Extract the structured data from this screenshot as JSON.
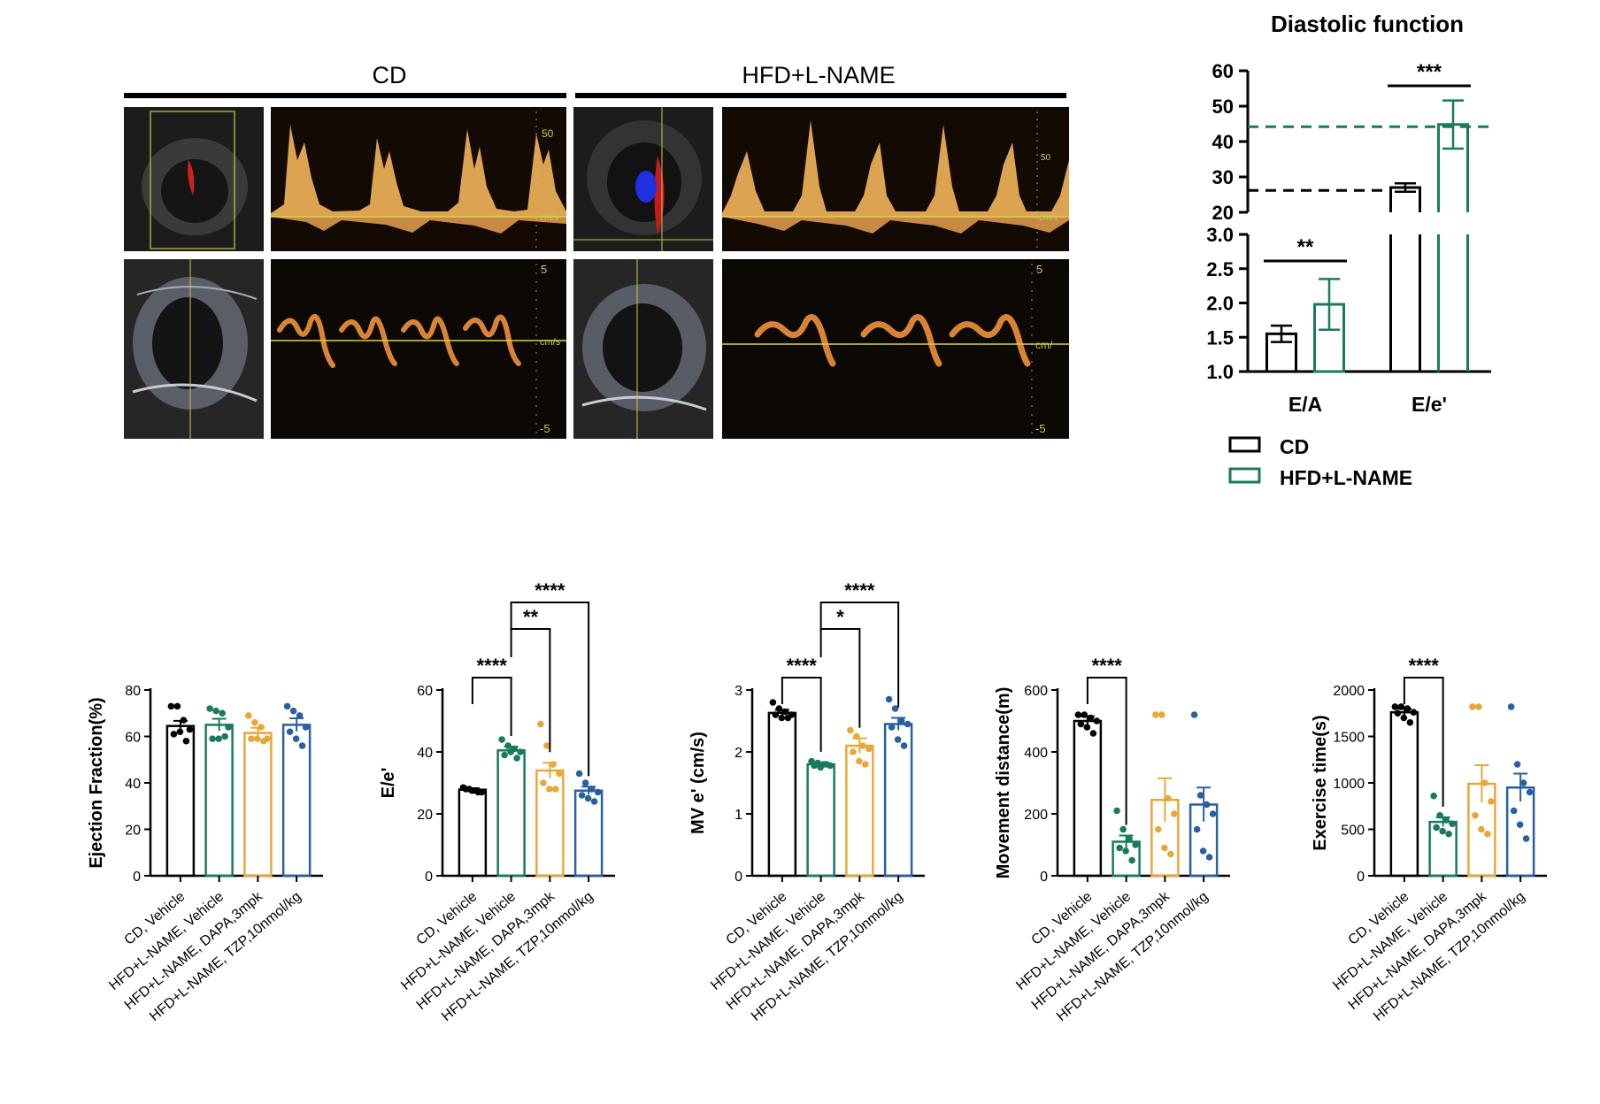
{
  "echo_panel": {
    "group_left_label": "CD",
    "group_right_label": "HFD+L-NAME",
    "scale_top": {
      "max": "50",
      "unit": "cm/s"
    },
    "scale_bottom": {
      "max": "5",
      "unit": "cm/s",
      "min": "-5"
    },
    "scale_bottom_right_unit": "cm/"
  },
  "colors": {
    "cd": "#000000",
    "hfd": "#1a7a5e",
    "dapa": "#e8a838",
    "tzp": "#2a5fa0",
    "doppler_wave": "#f2b45a",
    "tissue_wave": "#f0923a",
    "baseline": "#d8d24a"
  },
  "chart_data": [
    {
      "type": "bar",
      "title": "Diastolic function",
      "categories": [
        "E/A",
        "E/e'"
      ],
      "series": [
        {
          "name": "CD",
          "values": [
            1.55,
            27.0
          ],
          "errors": [
            0.12,
            1.2
          ]
        },
        {
          "name": "HFD+L-NAME",
          "values": [
            1.98,
            44.8
          ],
          "errors": [
            0.37,
            6.8
          ]
        }
      ],
      "axis_broken": true,
      "y_ticks_lower": [
        "1.0",
        "1.5",
        "2.0",
        "2.5",
        "3.0"
      ],
      "y_ticks_upper": [
        "20",
        "30",
        "40",
        "50",
        "60"
      ],
      "ylim_lower": [
        1.0,
        3.0
      ],
      "ylim_upper": [
        20,
        60
      ],
      "reference_lines": [
        {
          "series": "CD",
          "value": 26.2
        },
        {
          "series": "HFD+L-NAME",
          "value": 44.2
        }
      ],
      "significance": [
        {
          "category": "E/A",
          "label": "**"
        },
        {
          "category": "E/e'",
          "label": "***"
        }
      ],
      "legend": [
        "CD",
        "HFD+L-NAME"
      ]
    },
    {
      "type": "bar",
      "ylabel": "Ejection Fraction(%)",
      "ylim": [
        0,
        80
      ],
      "yticks": [
        "0",
        "20",
        "40",
        "60",
        "80"
      ],
      "categories": [
        "CD, Vehicle",
        "HFD+L-NAME, Vehicle",
        "HFD+L-NAME, DAPA,3mpk",
        "HFD+L-NAME, TZP,10nmol/kg"
      ],
      "values": [
        64.5,
        65.0,
        61.5,
        65.0
      ],
      "errors": [
        2.2,
        2.6,
        2.2,
        2.8
      ],
      "points": [
        [
          73,
          73,
          67,
          63,
          61,
          62,
          58
        ],
        [
          72,
          71,
          70,
          64,
          59,
          59,
          60
        ],
        [
          69,
          66,
          64,
          59,
          59,
          59,
          58
        ],
        [
          73,
          71,
          69,
          64,
          62,
          59,
          56
        ]
      ],
      "significance": []
    },
    {
      "type": "bar",
      "ylabel": "E/e'",
      "ylim": [
        0,
        60
      ],
      "yticks": [
        "0",
        "20",
        "40",
        "60"
      ],
      "categories": [
        "CD, Vehicle",
        "HFD+L-NAME, Vehicle",
        "HFD+L-NAME, DAPA,3mpk",
        "HFD+L-NAME, TZP,10nmol/kg"
      ],
      "values": [
        27.8,
        40.5,
        34.0,
        27.5
      ],
      "errors": [
        0.5,
        1.2,
        2.5,
        1.3
      ],
      "points": [
        [
          28.5,
          28,
          27.5,
          27,
          28,
          27.5,
          27
        ],
        [
          44,
          42,
          41,
          40,
          39,
          40,
          38
        ],
        [
          49,
          42,
          36,
          33,
          30,
          28,
          28
        ],
        [
          33,
          30,
          28,
          27,
          26,
          25,
          24
        ]
      ],
      "significance": [
        {
          "from": 0,
          "to": 1,
          "label": "****"
        },
        {
          "from": 1,
          "to": 2,
          "label": "**"
        },
        {
          "from": 1,
          "to": 3,
          "label": "****"
        }
      ]
    },
    {
      "type": "bar",
      "ylabel": "MV e' (cm/s)",
      "ylim": [
        0,
        3
      ],
      "yticks": [
        "0",
        "1",
        "2",
        "3"
      ],
      "categories": [
        "CD, Vehicle",
        "HFD+L-NAME, Vehicle",
        "HFD+L-NAME, DAPA,3mpk",
        "HFD+L-NAME, TZP,10nmol/kg"
      ],
      "values": [
        2.63,
        1.8,
        2.1,
        2.45
      ],
      "errors": [
        0.05,
        0.03,
        0.12,
        0.1
      ],
      "points": [
        [
          2.8,
          2.7,
          2.65,
          2.6,
          2.6,
          2.55,
          2.55
        ],
        [
          1.85,
          1.82,
          1.8,
          1.78,
          1.78,
          1.75,
          1.8
        ],
        [
          2.35,
          2.25,
          2.1,
          2.05,
          2.0,
          1.85,
          1.8
        ],
        [
          2.85,
          2.7,
          2.5,
          2.45,
          2.4,
          2.2,
          2.1
        ]
      ],
      "significance": [
        {
          "from": 0,
          "to": 1,
          "label": "****"
        },
        {
          "from": 1,
          "to": 2,
          "label": "*"
        },
        {
          "from": 1,
          "to": 3,
          "label": "****"
        }
      ]
    },
    {
      "type": "bar",
      "ylabel": "Movement distance(m)",
      "ylim": [
        0,
        600
      ],
      "yticks": [
        "0",
        "200",
        "400",
        "600"
      ],
      "categories": [
        "CD, Vehicle",
        "HFD+L-NAME, Vehicle",
        "HFD+L-NAME, DAPA,3mpk",
        "HFD+L-NAME, TZP,10nmol/kg"
      ],
      "values": [
        500,
        110,
        245,
        230
      ],
      "errors": [
        15,
        20,
        70,
        55
      ],
      "points": [
        [
          520,
          520,
          510,
          500,
          490,
          480,
          460
        ],
        [
          210,
          150,
          120,
          100,
          90,
          80,
          50
        ],
        [
          520,
          520,
          250,
          200,
          150,
          90,
          70
        ],
        [
          520,
          260,
          230,
          200,
          150,
          80,
          60
        ]
      ],
      "significance": [
        {
          "from": 0,
          "to": 1,
          "label": "****"
        }
      ]
    },
    {
      "type": "bar",
      "ylabel": "Exercise time(s)",
      "ylim": [
        0,
        2000
      ],
      "yticks": [
        "0",
        "500",
        "1000",
        "1500",
        "2000"
      ],
      "categories": [
        "CD, Vehicle",
        "HFD+L-NAME, Vehicle",
        "HFD+L-NAME, DAPA,3mpk",
        "HFD+L-NAME, TZP,10nmol/kg"
      ],
      "values": [
        1760,
        580,
        990,
        950
      ],
      "errors": [
        40,
        50,
        200,
        150
      ],
      "points": [
        [
          1820,
          1820,
          1800,
          1760,
          1750,
          1700,
          1650
        ],
        [
          860,
          650,
          600,
          560,
          520,
          480,
          450
        ],
        [
          1820,
          1820,
          1000,
          800,
          650,
          500,
          450
        ],
        [
          1820,
          1200,
          1000,
          900,
          700,
          550,
          400
        ]
      ],
      "significance": [
        {
          "from": 0,
          "to": 1,
          "label": "****"
        }
      ]
    }
  ]
}
